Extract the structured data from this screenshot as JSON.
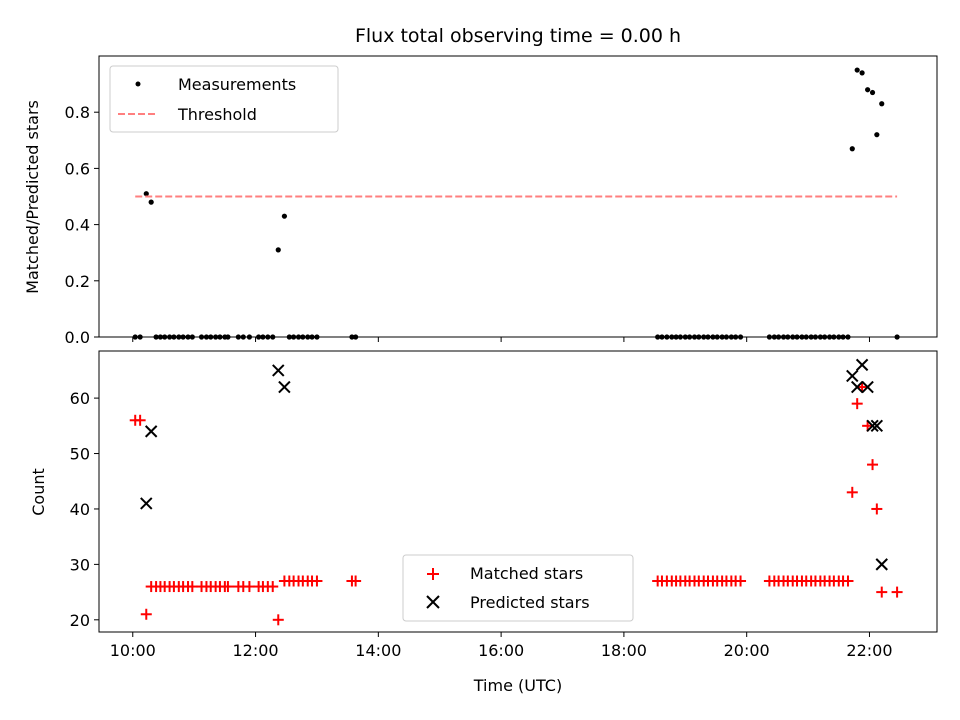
{
  "chart_data": [
    {
      "type": "scatter",
      "title": "Flux total observing time = 0.00 h",
      "xlabel": "",
      "ylabel": "Matched/Predicted stars",
      "xlim": [
        9.45,
        23.1
      ],
      "ylim": [
        0,
        1.0
      ],
      "yticks": [
        0.0,
        0.2,
        0.4,
        0.6,
        0.8
      ],
      "ytick_labels": [
        "0.0",
        "0.2",
        "0.4",
        "0.6",
        "0.8"
      ],
      "legend_placement": "upper-left",
      "series": [
        {
          "name": "Measurements",
          "style": "dot",
          "color": "#000000",
          "x": [
            10.04,
            10.12,
            10.22,
            10.3,
            10.38,
            10.45,
            10.52,
            10.6,
            10.67,
            10.75,
            10.82,
            10.9,
            10.97,
            11.12,
            11.2,
            11.27,
            11.35,
            11.42,
            11.5,
            11.55,
            11.72,
            11.8,
            11.9,
            12.05,
            12.12,
            12.2,
            12.28,
            12.37,
            12.47,
            12.55,
            12.62,
            12.7,
            12.77,
            12.85,
            12.92,
            13.0,
            13.57,
            13.63,
            18.55,
            18.62,
            18.7,
            18.78,
            18.85,
            18.92,
            19.0,
            19.07,
            19.15,
            19.22,
            19.3,
            19.37,
            19.45,
            19.52,
            19.6,
            19.67,
            19.75,
            19.82,
            19.9,
            20.37,
            20.45,
            20.52,
            20.6,
            20.67,
            20.75,
            20.82,
            20.9,
            20.97,
            21.05,
            21.12,
            21.2,
            21.27,
            21.35,
            21.42,
            21.5,
            21.57,
            21.65,
            21.72,
            21.8,
            21.88,
            21.97,
            22.05,
            22.12,
            22.2,
            22.45
          ],
          "y": [
            0.0,
            0.0,
            0.51,
            0.48,
            0.0,
            0.0,
            0.0,
            0.0,
            0.0,
            0.0,
            0.0,
            0.0,
            0.0,
            0.0,
            0.0,
            0.0,
            0.0,
            0.0,
            0.0,
            0.0,
            0.0,
            0.0,
            0.0,
            0.0,
            0.0,
            0.0,
            0.0,
            0.31,
            0.43,
            0.0,
            0.0,
            0.0,
            0.0,
            0.0,
            0.0,
            0.0,
            0.0,
            0.0,
            0.0,
            0.0,
            0.0,
            0.0,
            0.0,
            0.0,
            0.0,
            0.0,
            0.0,
            0.0,
            0.0,
            0.0,
            0.0,
            0.0,
            0.0,
            0.0,
            0.0,
            0.0,
            0.0,
            0.0,
            0.0,
            0.0,
            0.0,
            0.0,
            0.0,
            0.0,
            0.0,
            0.0,
            0.0,
            0.0,
            0.0,
            0.0,
            0.0,
            0.0,
            0.0,
            0.0,
            0.0,
            0.67,
            0.95,
            0.94,
            0.88,
            0.87,
            0.72,
            0.83,
            0.0
          ]
        },
        {
          "name": "Threshold",
          "style": "dashed-line",
          "color": "#ff7f7f",
          "x": [
            10.04,
            22.45
          ],
          "y": [
            0.5,
            0.5
          ]
        }
      ]
    },
    {
      "type": "scatter",
      "title": "",
      "xlabel": "Time (UTC)",
      "ylabel": "Count",
      "xlim": [
        9.45,
        23.1
      ],
      "ylim": [
        17.8,
        68.5
      ],
      "xticks": [
        10,
        12,
        14,
        16,
        18,
        20,
        22
      ],
      "xtick_labels": [
        "10:00",
        "12:00",
        "14:00",
        "16:00",
        "18:00",
        "20:00",
        "22:00"
      ],
      "yticks": [
        20,
        30,
        40,
        50,
        60
      ],
      "ytick_labels": [
        "20",
        "30",
        "40",
        "50",
        "60"
      ],
      "legend_placement": "lower-center",
      "series": [
        {
          "name": "Matched stars",
          "style": "plus",
          "color": "#ff0000",
          "x": [
            10.04,
            10.12,
            10.22,
            10.3,
            10.38,
            10.45,
            10.52,
            10.6,
            10.67,
            10.75,
            10.82,
            10.9,
            10.97,
            11.12,
            11.2,
            11.27,
            11.35,
            11.42,
            11.5,
            11.55,
            11.72,
            11.8,
            11.9,
            12.05,
            12.12,
            12.2,
            12.28,
            12.37,
            12.47,
            12.55,
            12.62,
            12.7,
            12.77,
            12.85,
            12.92,
            13.0,
            13.57,
            13.63,
            18.55,
            18.62,
            18.7,
            18.78,
            18.85,
            18.92,
            19.0,
            19.07,
            19.15,
            19.22,
            19.3,
            19.37,
            19.45,
            19.52,
            19.6,
            19.67,
            19.75,
            19.82,
            19.9,
            20.37,
            20.45,
            20.52,
            20.6,
            20.67,
            20.75,
            20.82,
            20.9,
            20.97,
            21.05,
            21.12,
            21.2,
            21.27,
            21.35,
            21.42,
            21.5,
            21.57,
            21.65,
            21.72,
            21.8,
            21.88,
            21.97,
            22.05,
            22.12,
            22.2,
            22.45
          ],
          "y": [
            56,
            56,
            21,
            26,
            26,
            26,
            26,
            26,
            26,
            26,
            26,
            26,
            26,
            26,
            26,
            26,
            26,
            26,
            26,
            26,
            26,
            26,
            26,
            26,
            26,
            26,
            26,
            20,
            27,
            27,
            27,
            27,
            27,
            27,
            27,
            27,
            27,
            27,
            27,
            27,
            27,
            27,
            27,
            27,
            27,
            27,
            27,
            27,
            27,
            27,
            27,
            27,
            27,
            27,
            27,
            27,
            27,
            27,
            27,
            27,
            27,
            27,
            27,
            27,
            27,
            27,
            27,
            27,
            27,
            27,
            27,
            27,
            27,
            27,
            27,
            43,
            59,
            62,
            55,
            48,
            40,
            25,
            25
          ]
        },
        {
          "name": "Predicted stars",
          "style": "x",
          "color": "#000000",
          "x": [
            10.22,
            10.3,
            12.37,
            12.47,
            21.72,
            21.8,
            21.88,
            21.97,
            22.05,
            22.12,
            22.2
          ],
          "y": [
            41,
            54,
            65,
            62,
            64,
            62,
            66,
            62,
            55,
            55,
            30
          ]
        }
      ]
    }
  ]
}
